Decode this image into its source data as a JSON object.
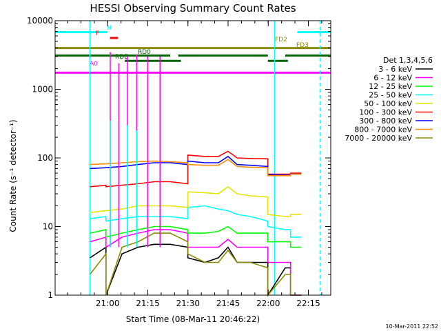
{
  "chart_data": {
    "type": "line",
    "title": "HESSI Observing Summary Count Rates",
    "xlabel": "Start Time (08-Mar-11 20:46:22)",
    "ylabel": "Count Rate (s⁻¹ detector⁻¹)",
    "x_unit": "minutes after 20:46:22 UT",
    "xlim": [
      -6,
      97
    ],
    "ylim": [
      1,
      10000
    ],
    "yscale": "log",
    "grid": false,
    "legend_position": "right",
    "legend_title": "Det 1,3,4,5,6",
    "footer_timestamp": "10-Mar-2011 22:52",
    "x_ticks": [
      {
        "label": "21:00",
        "x": 13.63
      },
      {
        "label": "21:15",
        "x": 28.63
      },
      {
        "label": "21:30",
        "x": 43.63
      },
      {
        "label": "21:45",
        "x": 58.63
      },
      {
        "label": "22:00",
        "x": 73.63
      },
      {
        "label": "22:15",
        "x": 88.63
      }
    ],
    "y_ticks": [
      {
        "label": "1",
        "y": 1
      },
      {
        "label": "10",
        "y": 10
      },
      {
        "label": "100",
        "y": 100
      },
      {
        "label": "1000",
        "y": 1000
      },
      {
        "label": "10000",
        "y": 10000
      }
    ],
    "series": [
      {
        "name": "3 - 6 keV",
        "color": "#000000",
        "x": [
          7,
          13,
          13,
          19,
          25,
          31,
          37,
          43.6,
          43.6,
          50,
          55,
          58.6,
          62,
          67,
          73.5,
          73.5,
          80,
          82,
          82,
          86
        ],
        "y": [
          3.5,
          5,
          1,
          4,
          5,
          5.5,
          5.5,
          5,
          3.5,
          3,
          3.5,
          5,
          3,
          3,
          3,
          1,
          2.5,
          2.5,
          1,
          1
        ]
      },
      {
        "name": "6 - 12 keV",
        "color": "#ff00ff",
        "x": [
          7,
          13,
          13,
          19,
          25,
          31,
          37,
          43.6,
          43.6,
          50,
          55,
          58.6,
          62,
          67,
          73.5,
          73.5,
          80,
          82,
          82,
          86
        ],
        "y": [
          6,
          7,
          5,
          7,
          8,
          9,
          9,
          8,
          5,
          5,
          5,
          6.5,
          5,
          5,
          5,
          3,
          3,
          3,
          1,
          1
        ]
      },
      {
        "name": "12 - 25 keV",
        "color": "#00ff00",
        "x": [
          7,
          13,
          13,
          19,
          25,
          31,
          37,
          43.6,
          43.6,
          50,
          55,
          58.6,
          62,
          67,
          73.5,
          73.5,
          80,
          82,
          82,
          86
        ],
        "y": [
          8,
          9,
          7,
          8,
          9,
          10,
          10,
          9,
          8,
          8,
          8.5,
          10,
          8,
          8,
          8,
          6,
          6,
          6,
          5,
          5
        ]
      },
      {
        "name": "25 - 50 keV",
        "color": "#00ffff",
        "x": [
          7,
          13,
          13,
          19,
          25,
          31,
          37,
          43.6,
          43.6,
          50,
          55,
          58.6,
          62,
          67,
          73.5,
          73.5,
          80,
          82,
          82,
          86
        ],
        "y": [
          13,
          14,
          12,
          13,
          14,
          14,
          14,
          13,
          19,
          20,
          18,
          17,
          15,
          14,
          12,
          10,
          9,
          9,
          7,
          7
        ]
      },
      {
        "name": "50 - 100 keV",
        "color": "#e5e500",
        "x": [
          7,
          13,
          13,
          19,
          25,
          31,
          37,
          43.6,
          43.6,
          50,
          55,
          58.6,
          62,
          67,
          73.5,
          73.5,
          80,
          82,
          82,
          86
        ],
        "y": [
          16,
          17,
          17,
          18,
          20,
          20,
          20,
          19,
          32,
          31,
          30,
          38,
          30,
          28,
          27,
          15,
          14,
          14,
          15,
          15
        ]
      },
      {
        "name": "100 - 300 keV",
        "color": "#ff0000",
        "x": [
          7,
          13,
          13,
          19,
          25,
          31,
          37,
          43.6,
          43.6,
          50,
          55,
          58.6,
          62,
          67,
          73.5,
          73.5,
          80,
          82,
          82,
          86
        ],
        "y": [
          38,
          40,
          38,
          40,
          42,
          45,
          45,
          42,
          110,
          105,
          105,
          125,
          100,
          98,
          97,
          58,
          58,
          58,
          60,
          60
        ]
      },
      {
        "name": "300 - 800 keV",
        "color": "#0000ff",
        "x": [
          7,
          13,
          13,
          19,
          25,
          31,
          37,
          43.6,
          43.6,
          50,
          55,
          58.6,
          62,
          67,
          73.5,
          73.5,
          80,
          82,
          82,
          86
        ],
        "y": [
          70,
          72,
          72,
          75,
          80,
          85,
          85,
          80,
          90,
          85,
          85,
          105,
          80,
          78,
          75,
          57,
          56,
          56,
          58,
          58
        ]
      },
      {
        "name": "800 - 7000 keV",
        "color": "#ff8c00",
        "x": [
          7,
          13,
          13,
          19,
          25,
          31,
          37,
          43.6,
          43.6,
          50,
          55,
          58.6,
          62,
          67,
          73.5,
          73.5,
          80,
          82,
          82,
          86
        ],
        "y": [
          80,
          82,
          82,
          85,
          88,
          90,
          88,
          85,
          80,
          78,
          78,
          95,
          75,
          73,
          72,
          55,
          55,
          55,
          58,
          58
        ]
      },
      {
        "name": "7000 - 20000 keV",
        "color": "#8b8b00",
        "x": [
          7,
          13,
          13,
          19,
          25,
          31,
          37,
          43.6,
          43.6,
          50,
          55,
          58.6,
          62,
          67,
          73.5,
          73.5,
          80,
          82,
          82,
          86
        ],
        "y": [
          2,
          4,
          1,
          5,
          6,
          8,
          8,
          6,
          4,
          3,
          3,
          4.5,
          3,
          3,
          2.5,
          1,
          2,
          2,
          1,
          1
        ]
      }
    ],
    "spikes": [
      {
        "x": 14.6,
        "peak": 3500,
        "color": "#ff00ff"
      },
      {
        "x": 14.6,
        "peak": 350,
        "color": "#00ffff"
      },
      {
        "x": 17.8,
        "peak": 2400,
        "color": "#ff00ff"
      },
      {
        "x": 21.0,
        "peak": 3000,
        "color": "#ff00ff"
      },
      {
        "x": 21.0,
        "peak": 300,
        "color": "#00ffff"
      },
      {
        "x": 24.5,
        "peak": 3200,
        "color": "#ff00ff"
      },
      {
        "x": 24.5,
        "peak": 250,
        "color": "#00ffff"
      },
      {
        "x": 28.6,
        "peak": 3000,
        "color": "#ff00ff"
      },
      {
        "x": 33.2,
        "peak": 3000,
        "color": "#ff00ff"
      }
    ],
    "flag_bars": [
      {
        "label": "",
        "color": "#00ffff",
        "y": 6800,
        "segments": [
          [
            -6,
            13.5
          ],
          [
            84.5,
            97
          ]
        ]
      },
      {
        "label": "N",
        "color": "#00ffff",
        "y": 6800,
        "segments": []
      },
      {
        "label": "F",
        "color": "#ff0000",
        "y": 5600,
        "segments": [
          [
            14.5,
            17.5
          ]
        ]
      },
      {
        "label": "FD2",
        "color": "#8b8b00",
        "y": 4000,
        "segments": [
          [
            -6,
            97
          ]
        ]
      },
      {
        "label": "FD3",
        "color": "#8b8b00",
        "y": 4000,
        "segments": []
      },
      {
        "label": "RDE",
        "color": "#006400",
        "y": 3100,
        "segments": [
          [
            -6,
            37
          ],
          [
            40,
            73.5
          ],
          [
            80,
            97
          ]
        ]
      },
      {
        "label": "RD0",
        "color": "#006400",
        "y": 2600,
        "segments": [
          [
            20,
            41
          ],
          [
            73.5,
            81
          ]
        ]
      },
      {
        "label": "A0",
        "color": "#ff00ff",
        "y": 1750,
        "segments": [
          [
            -6,
            97
          ]
        ]
      }
    ],
    "saa_lines": [
      {
        "x": 7,
        "color": "#00ffff"
      },
      {
        "x": 76,
        "color": "#00ffff"
      },
      {
        "x": 93,
        "color": "#00ffff",
        "dashed": true
      }
    ]
  }
}
